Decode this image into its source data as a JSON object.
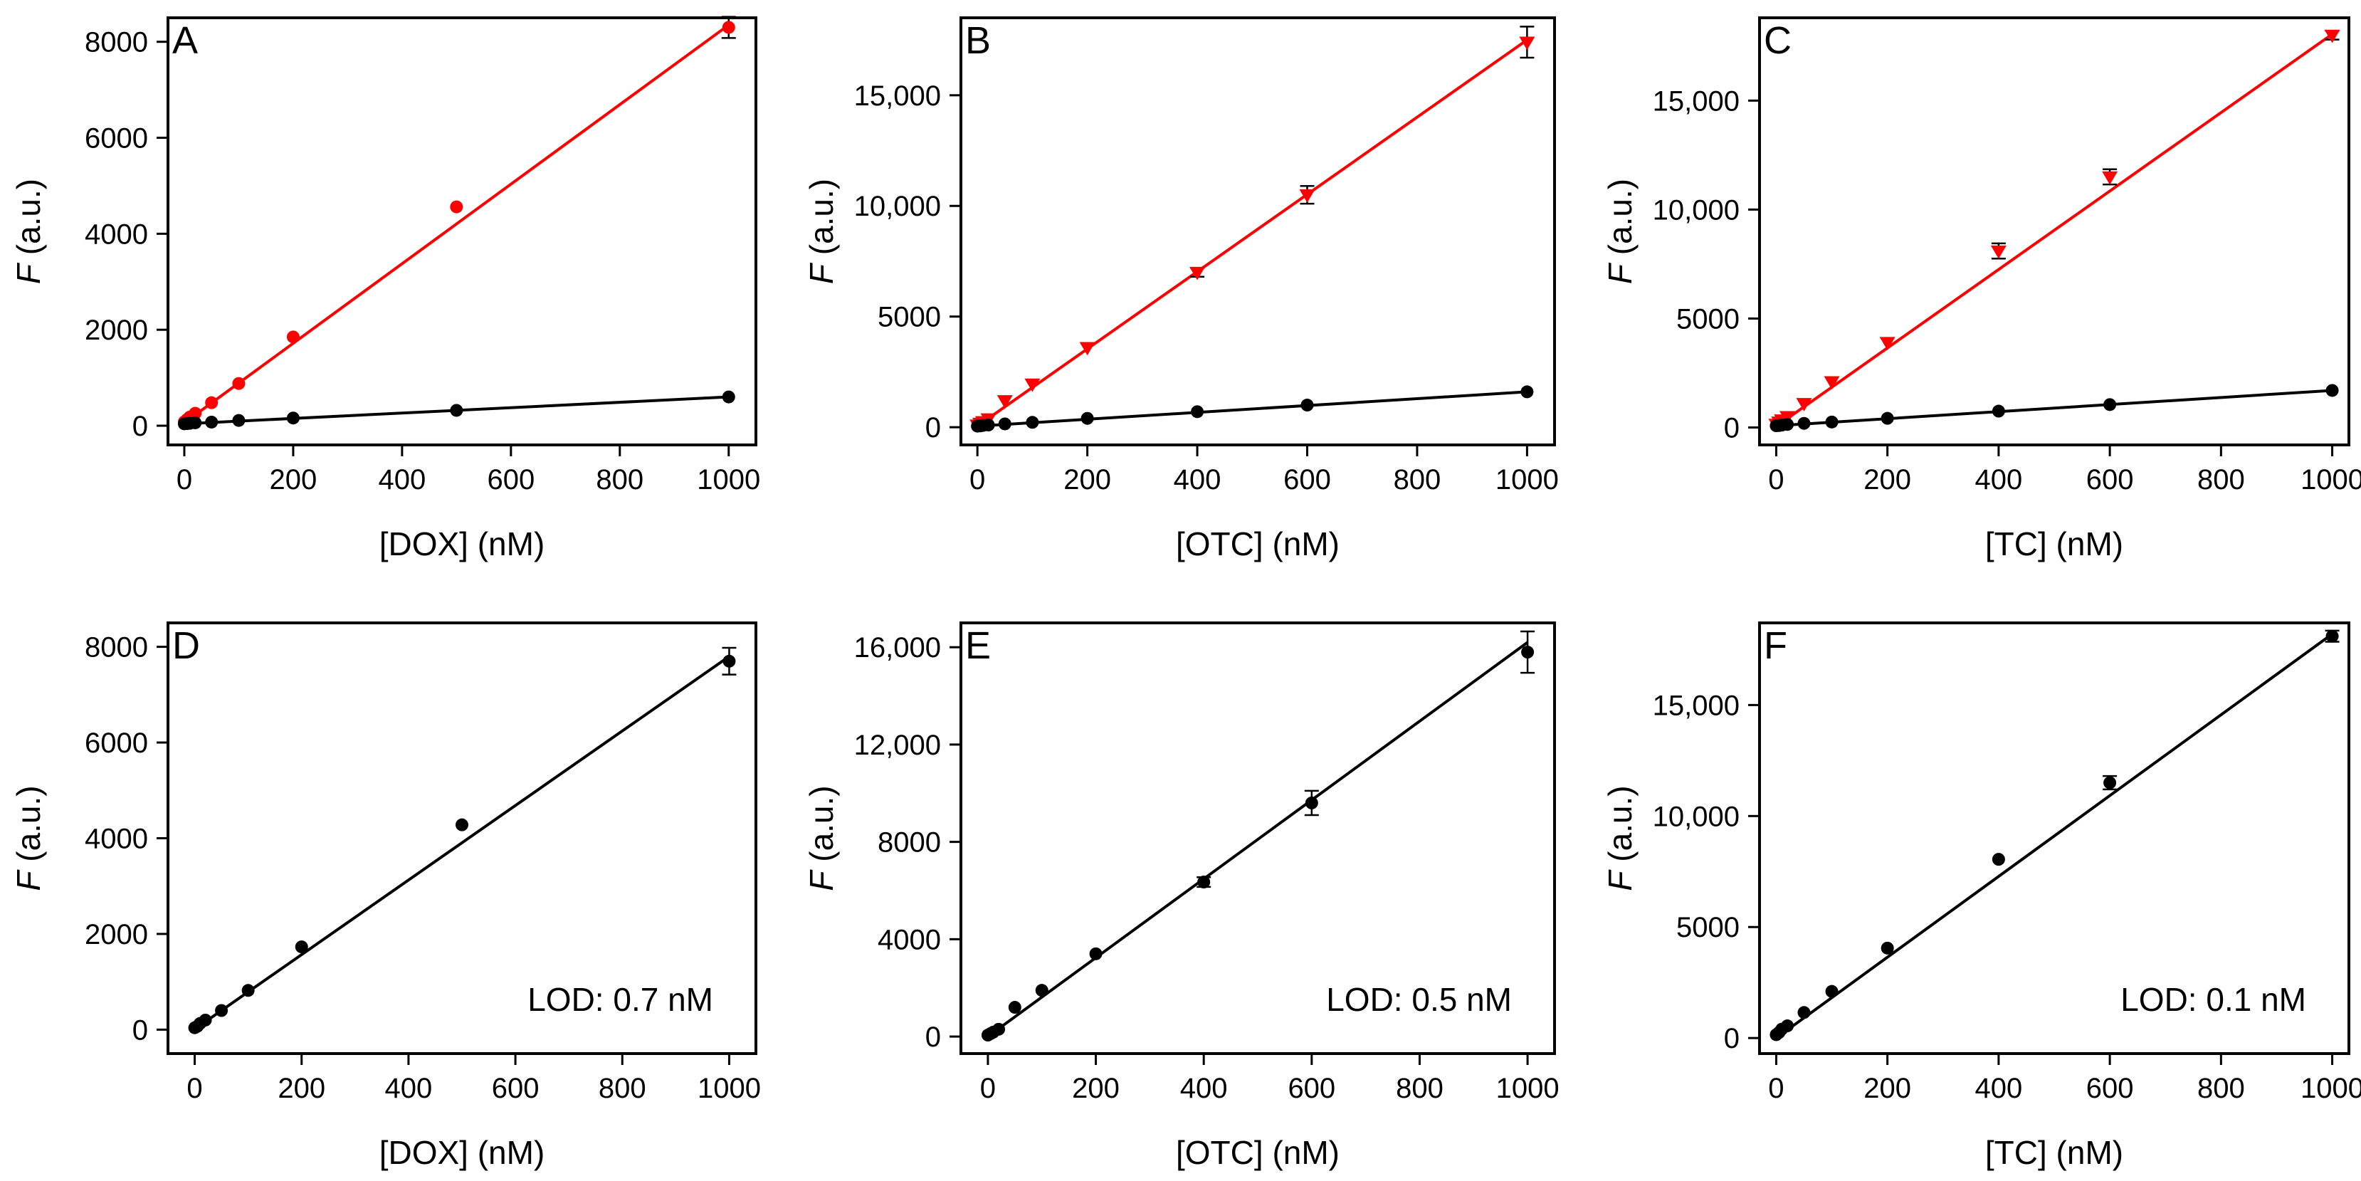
{
  "colors": {
    "red": "#ff0000",
    "black": "#000000"
  },
  "chart_data": [
    {
      "type": "scatter",
      "panel_label": "A",
      "xlabel": "[DOX] (nM)",
      "ylabel_italic": "F",
      "ylabel_rest": " (a.u.)",
      "xlim": [
        -30,
        1050
      ],
      "ylim": [
        -400,
        8500
      ],
      "xticks": [
        0,
        200,
        400,
        600,
        800,
        1000
      ],
      "yticks": [
        0,
        2000,
        4000,
        6000,
        8000
      ],
      "ytick_labels": [
        "0",
        "2000",
        "4000",
        "6000",
        "8000"
      ],
      "annotation": "",
      "series": [
        {
          "color": "red",
          "marker": "circle",
          "x": [
            0,
            5,
            10,
            20,
            50,
            100,
            200,
            500,
            1000
          ],
          "y": [
            80,
            130,
            180,
            260,
            480,
            880,
            1850,
            4560,
            8300
          ],
          "err": [
            0,
            0,
            0,
            0,
            0,
            0,
            0,
            0,
            220
          ],
          "fit": [
            [
              0,
              60
            ],
            [
              1000,
              8350
            ]
          ]
        },
        {
          "color": "black",
          "marker": "circle",
          "x": [
            0,
            5,
            10,
            20,
            50,
            100,
            200,
            500,
            1000
          ],
          "y": [
            40,
            45,
            50,
            60,
            75,
            110,
            160,
            320,
            600
          ],
          "err": [
            0,
            0,
            0,
            0,
            0,
            0,
            0,
            0,
            0
          ],
          "fit": [
            [
              0,
              40
            ],
            [
              1000,
              600
            ]
          ]
        }
      ]
    },
    {
      "type": "scatter",
      "panel_label": "B",
      "xlabel": "[OTC] (nM)",
      "ylabel_italic": "F",
      "ylabel_rest": " (a.u.)",
      "xlim": [
        -30,
        1050
      ],
      "ylim": [
        -800,
        18500
      ],
      "xticks": [
        0,
        200,
        400,
        600,
        800,
        1000
      ],
      "yticks": [
        0,
        5000,
        10000,
        15000
      ],
      "ytick_labels": [
        "0",
        "5000",
        "10,000",
        "15,000"
      ],
      "annotation": "",
      "series": [
        {
          "color": "red",
          "marker": "triangle",
          "x": [
            0,
            5,
            10,
            20,
            50,
            100,
            200,
            400,
            600,
            1000
          ],
          "y": [
            100,
            180,
            250,
            380,
            1200,
            1950,
            3600,
            7000,
            10500,
            17400
          ],
          "err": [
            0,
            0,
            0,
            0,
            0,
            0,
            0,
            200,
            400,
            700
          ],
          "fit": [
            [
              0,
              50
            ],
            [
              1000,
              17500
            ]
          ]
        },
        {
          "color": "black",
          "marker": "circle",
          "x": [
            0,
            5,
            10,
            20,
            50,
            100,
            200,
            400,
            600,
            1000
          ],
          "y": [
            50,
            60,
            80,
            100,
            150,
            220,
            400,
            700,
            1000,
            1600
          ],
          "err": [
            0,
            0,
            0,
            0,
            0,
            0,
            0,
            0,
            0,
            0
          ],
          "fit": [
            [
              0,
              50
            ],
            [
              1000,
              1600
            ]
          ]
        }
      ]
    },
    {
      "type": "scatter",
      "panel_label": "C",
      "xlabel": "[TC] (nM)",
      "ylabel_italic": "F",
      "ylabel_rest": " (a.u.)",
      "xlim": [
        -30,
        1030
      ],
      "ylim": [
        -800,
        18800
      ],
      "xticks": [
        0,
        200,
        400,
        600,
        800,
        1000
      ],
      "yticks": [
        0,
        5000,
        10000,
        15000
      ],
      "ytick_labels": [
        "0",
        "5000",
        "10,000",
        "15,000"
      ],
      "annotation": "",
      "series": [
        {
          "color": "red",
          "marker": "triangle",
          "x": [
            0,
            5,
            10,
            20,
            50,
            100,
            200,
            400,
            600,
            1000
          ],
          "y": [
            150,
            250,
            350,
            500,
            1100,
            2100,
            3900,
            8100,
            11500,
            18000
          ],
          "err": [
            0,
            0,
            0,
            0,
            0,
            0,
            0,
            350,
            350,
            200
          ],
          "fit": [
            [
              0,
              50
            ],
            [
              1000,
              18050
            ]
          ]
        },
        {
          "color": "black",
          "marker": "circle",
          "x": [
            0,
            5,
            10,
            20,
            50,
            100,
            200,
            400,
            600,
            1000
          ],
          "y": [
            80,
            90,
            110,
            140,
            190,
            250,
            420,
            750,
            1050,
            1700
          ],
          "err": [
            0,
            0,
            0,
            0,
            0,
            0,
            0,
            0,
            0,
            0
          ],
          "fit": [
            [
              0,
              80
            ],
            [
              1000,
              1700
            ]
          ]
        }
      ]
    },
    {
      "type": "scatter",
      "panel_label": "D",
      "xlabel": "[DOX] (nM)",
      "ylabel_italic": "F",
      "ylabel_rest": " (a.u.)",
      "xlim": [
        -50,
        1050
      ],
      "ylim": [
        -500,
        8500
      ],
      "xticks": [
        0,
        200,
        400,
        600,
        800,
        1000
      ],
      "yticks": [
        0,
        2000,
        4000,
        6000,
        8000
      ],
      "ytick_labels": [
        "0",
        "2000",
        "4000",
        "6000",
        "8000"
      ],
      "annotation": "LOD: 0.7 nM",
      "series": [
        {
          "color": "black",
          "marker": "circle",
          "x": [
            0,
            5,
            10,
            20,
            50,
            100,
            200,
            500,
            1000
          ],
          "y": [
            40,
            70,
            130,
            200,
            400,
            820,
            1730,
            4280,
            7700
          ],
          "err": [
            0,
            0,
            0,
            0,
            0,
            0,
            0,
            0,
            280
          ],
          "fit": [
            [
              0,
              10
            ],
            [
              1000,
              7800
            ]
          ]
        }
      ]
    },
    {
      "type": "scatter",
      "panel_label": "E",
      "xlabel": "[OTC] (nM)",
      "ylabel_italic": "F",
      "ylabel_rest": " (a.u.)",
      "xlim": [
        -50,
        1050
      ],
      "ylim": [
        -700,
        17000
      ],
      "xticks": [
        0,
        200,
        400,
        600,
        800,
        1000
      ],
      "yticks": [
        0,
        4000,
        8000,
        12000,
        16000
      ],
      "ytick_labels": [
        "0",
        "4000",
        "8000",
        "12,000",
        "16,000"
      ],
      "annotation": "LOD: 0.5 nM",
      "series": [
        {
          "color": "black",
          "marker": "circle",
          "x": [
            0,
            5,
            10,
            20,
            50,
            100,
            200,
            400,
            600,
            1000
          ],
          "y": [
            60,
            120,
            180,
            300,
            1200,
            1900,
            3400,
            6350,
            9600,
            15800
          ],
          "err": [
            0,
            0,
            0,
            0,
            0,
            0,
            0,
            200,
            500,
            850
          ],
          "fit": [
            [
              0,
              0
            ],
            [
              1000,
              16200
            ]
          ]
        }
      ]
    },
    {
      "type": "scatter",
      "panel_label": "F",
      "xlabel": "[TC] (nM)",
      "ylabel_italic": "F",
      "ylabel_rest": " (a.u.)",
      "xlim": [
        -30,
        1030
      ],
      "ylim": [
        -700,
        18700
      ],
      "xticks": [
        0,
        200,
        400,
        600,
        800,
        1000
      ],
      "yticks": [
        0,
        5000,
        10000,
        15000
      ],
      "ytick_labels": [
        "0",
        "5000",
        "10,000",
        "15,000"
      ],
      "annotation": "LOD: 0.1 nM",
      "series": [
        {
          "color": "black",
          "marker": "circle",
          "x": [
            0,
            5,
            10,
            20,
            50,
            100,
            200,
            400,
            600,
            1000
          ],
          "y": [
            150,
            250,
            400,
            550,
            1150,
            2100,
            4050,
            8050,
            11500,
            18100
          ],
          "err": [
            0,
            0,
            0,
            0,
            0,
            0,
            0,
            0,
            300,
            250
          ],
          "fit": [
            [
              0,
              0
            ],
            [
              1000,
              18200
            ]
          ]
        }
      ]
    }
  ]
}
